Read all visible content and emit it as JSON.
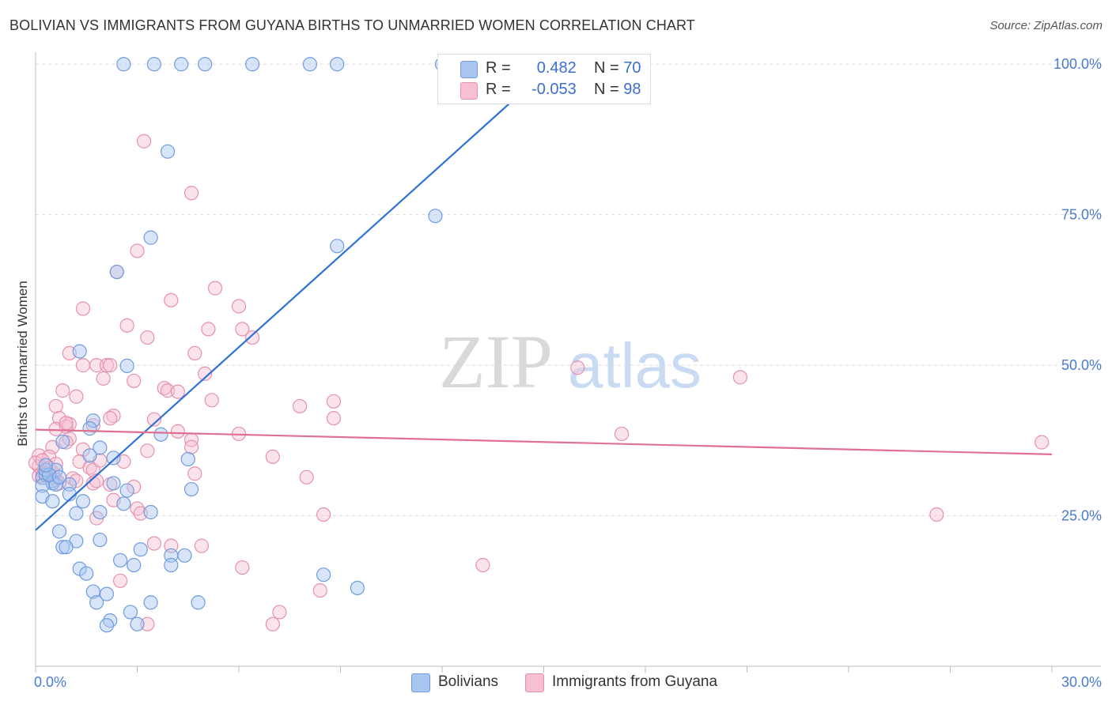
{
  "title": "BOLIVIAN VS IMMIGRANTS FROM GUYANA BIRTHS TO UNMARRIED WOMEN CORRELATION CHART",
  "source": "Source: ZipAtlas.com",
  "watermark": {
    "zip": "ZIP",
    "atlas": "atlas"
  },
  "legend": {
    "r_label": "R =",
    "n_label": "N =",
    "rows": [
      {
        "r": "0.482",
        "n": "70",
        "color": "#a9c6f0",
        "stroke": "#6f9be0"
      },
      {
        "r": "-0.053",
        "n": "98",
        "color": "#f7c0d2",
        "stroke": "#e691ad"
      }
    ]
  },
  "bottom_legend": [
    {
      "label": "Bolivians",
      "color": "#a9c6f0",
      "stroke": "#6f9be0"
    },
    {
      "label": "Immigrants from Guyana",
      "color": "#f7c0d2",
      "stroke": "#e691ad"
    }
  ],
  "chart_data": {
    "type": "scatter",
    "title": "BOLIVIAN VS IMMIGRANTS FROM GUYANA BIRTHS TO UNMARRIED WOMEN CORRELATION CHART",
    "xlabel": "",
    "ylabel": "Births to Unmarried Women",
    "xlim": [
      0,
      30
    ],
    "ylim": [
      0,
      102
    ],
    "x_tick_labels": [
      "0.0%",
      "30.0%"
    ],
    "y_ticks": [
      25,
      50,
      75,
      100
    ],
    "y_tick_labels": [
      "25.0%",
      "50.0%",
      "75.0%",
      "100.0%"
    ],
    "x_minor_ticks": [
      0,
      3,
      6,
      9,
      12,
      15,
      18,
      21,
      24,
      27,
      30
    ],
    "grid": "horizontal-dashed",
    "series": [
      {
        "name": "Bolivians",
        "color": "#a9c6f0",
        "stroke": "#6f9be0",
        "trend": {
          "x": [
            0,
            14.8
          ],
          "y": [
            22.6,
            97.6
          ],
          "color": "#2f72d6"
        },
        "points": [
          [
            2.6,
            100
          ],
          [
            3.5,
            100
          ],
          [
            4.3,
            100
          ],
          [
            5.0,
            100
          ],
          [
            6.4,
            100
          ],
          [
            8.1,
            100
          ],
          [
            8.9,
            100
          ],
          [
            12.0,
            100
          ],
          [
            3.9,
            85.5
          ],
          [
            11.8,
            74.8
          ],
          [
            8.9,
            69.8
          ],
          [
            3.4,
            71.2
          ],
          [
            2.4,
            65.5
          ],
          [
            1.3,
            52.3
          ],
          [
            2.7,
            49.9
          ],
          [
            1.7,
            40.8
          ],
          [
            1.6,
            39.5
          ],
          [
            3.7,
            38.5
          ],
          [
            0.8,
            37.3
          ],
          [
            1.9,
            36.3
          ],
          [
            2.3,
            34.6
          ],
          [
            4.5,
            34.4
          ],
          [
            1.6,
            35.0
          ],
          [
            0.2,
            31.3
          ],
          [
            0.3,
            31.8
          ],
          [
            0.5,
            30.8
          ],
          [
            0.5,
            30.4
          ],
          [
            0.2,
            30.0
          ],
          [
            0.6,
            30.2
          ],
          [
            1.0,
            30.2
          ],
          [
            2.3,
            30.4
          ],
          [
            0.2,
            28.2
          ],
          [
            0.5,
            27.4
          ],
          [
            1.0,
            28.6
          ],
          [
            1.4,
            27.4
          ],
          [
            2.6,
            27.0
          ],
          [
            4.6,
            29.4
          ],
          [
            2.7,
            29.2
          ],
          [
            1.2,
            25.4
          ],
          [
            1.9,
            25.6
          ],
          [
            3.4,
            25.6
          ],
          [
            0.7,
            22.4
          ],
          [
            1.2,
            20.8
          ],
          [
            1.9,
            21.0
          ],
          [
            0.8,
            19.8
          ],
          [
            0.9,
            19.8
          ],
          [
            3.1,
            19.4
          ],
          [
            4.0,
            18.4
          ],
          [
            4.4,
            18.4
          ],
          [
            2.5,
            17.6
          ],
          [
            2.9,
            16.8
          ],
          [
            4.0,
            16.8
          ],
          [
            1.3,
            16.2
          ],
          [
            1.5,
            15.4
          ],
          [
            8.5,
            15.2
          ],
          [
            9.5,
            13.0
          ],
          [
            1.7,
            12.4
          ],
          [
            2.1,
            12.0
          ],
          [
            1.8,
            10.6
          ],
          [
            3.4,
            10.6
          ],
          [
            4.8,
            10.6
          ],
          [
            2.8,
            9.0
          ],
          [
            2.2,
            7.6
          ],
          [
            2.1,
            6.8
          ],
          [
            3.0,
            7.0
          ],
          [
            0.3,
            32.6
          ],
          [
            0.6,
            32.6
          ],
          [
            0.4,
            31.8
          ],
          [
            0.3,
            33.4
          ],
          [
            0.7,
            31.4
          ]
        ]
      },
      {
        "name": "Immigrants from Guyana",
        "color": "#f7c0d2",
        "stroke": "#e691ad",
        "trend": {
          "x": [
            0,
            30
          ],
          "y": [
            39.3,
            35.2
          ],
          "color": "#e0708f"
        },
        "points": [
          [
            3.2,
            87.2
          ],
          [
            4.6,
            78.6
          ],
          [
            3.0,
            69.0
          ],
          [
            2.4,
            65.5
          ],
          [
            5.3,
            62.8
          ],
          [
            4.0,
            60.8
          ],
          [
            6.0,
            59.8
          ],
          [
            1.4,
            59.4
          ],
          [
            6.1,
            56.0
          ],
          [
            5.1,
            56.0
          ],
          [
            2.7,
            56.6
          ],
          [
            6.4,
            54.6
          ],
          [
            3.3,
            54.6
          ],
          [
            1.0,
            52.0
          ],
          [
            4.7,
            52.0
          ],
          [
            1.4,
            50.0
          ],
          [
            1.8,
            50.0
          ],
          [
            2.1,
            50.0
          ],
          [
            2.2,
            50.0
          ],
          [
            16.0,
            49.6
          ],
          [
            20.8,
            48.0
          ],
          [
            5.0,
            48.6
          ],
          [
            2.0,
            47.8
          ],
          [
            2.9,
            47.4
          ],
          [
            3.8,
            46.2
          ],
          [
            3.9,
            45.8
          ],
          [
            4.2,
            45.6
          ],
          [
            0.8,
            45.8
          ],
          [
            1.2,
            44.8
          ],
          [
            5.2,
            44.2
          ],
          [
            8.8,
            44.0
          ],
          [
            7.8,
            43.2
          ],
          [
            0.6,
            43.2
          ],
          [
            2.3,
            41.6
          ],
          [
            0.7,
            41.2
          ],
          [
            3.5,
            41.0
          ],
          [
            8.8,
            41.2
          ],
          [
            1.0,
            40.2
          ],
          [
            0.9,
            39.8
          ],
          [
            0.6,
            39.4
          ],
          [
            4.2,
            39.0
          ],
          [
            6.0,
            38.6
          ],
          [
            17.3,
            38.6
          ],
          [
            1.0,
            37.8
          ],
          [
            4.6,
            37.6
          ],
          [
            0.9,
            37.2
          ],
          [
            29.7,
            37.2
          ],
          [
            0.5,
            36.4
          ],
          [
            4.6,
            36.4
          ],
          [
            1.4,
            36.0
          ],
          [
            3.3,
            35.8
          ],
          [
            7.0,
            34.8
          ],
          [
            0.1,
            35.0
          ],
          [
            0.4,
            34.8
          ],
          [
            1.3,
            34.0
          ],
          [
            2.6,
            34.0
          ],
          [
            1.6,
            33.0
          ],
          [
            0.1,
            33.2
          ],
          [
            0.2,
            32.2
          ],
          [
            0.3,
            32.0
          ],
          [
            0.5,
            32.2
          ],
          [
            1.7,
            32.6
          ],
          [
            4.7,
            32.0
          ],
          [
            8.0,
            31.4
          ],
          [
            0.1,
            31.6
          ],
          [
            0.6,
            31.0
          ],
          [
            1.1,
            31.2
          ],
          [
            1.2,
            30.8
          ],
          [
            1.7,
            30.4
          ],
          [
            0.7,
            30.4
          ],
          [
            2.2,
            30.2
          ],
          [
            2.9,
            29.8
          ],
          [
            2.3,
            27.6
          ],
          [
            3.0,
            26.2
          ],
          [
            3.1,
            25.4
          ],
          [
            8.5,
            25.2
          ],
          [
            26.6,
            25.2
          ],
          [
            1.8,
            24.6
          ],
          [
            3.5,
            20.4
          ],
          [
            4.0,
            20.0
          ],
          [
            4.9,
            20.0
          ],
          [
            6.1,
            16.4
          ],
          [
            13.2,
            16.8
          ],
          [
            2.5,
            14.2
          ],
          [
            8.4,
            12.6
          ],
          [
            7.2,
            9.0
          ],
          [
            7.0,
            7.0
          ],
          [
            3.3,
            7.0
          ],
          [
            0.0,
            33.8
          ],
          [
            0.4,
            33.0
          ],
          [
            0.2,
            34.2
          ],
          [
            1.9,
            34.2
          ],
          [
            0.9,
            40.4
          ],
          [
            1.7,
            40.0
          ],
          [
            2.2,
            41.2
          ],
          [
            0.2,
            31.6
          ],
          [
            0.6,
            33.6
          ],
          [
            1.8,
            30.8
          ]
        ]
      }
    ]
  }
}
